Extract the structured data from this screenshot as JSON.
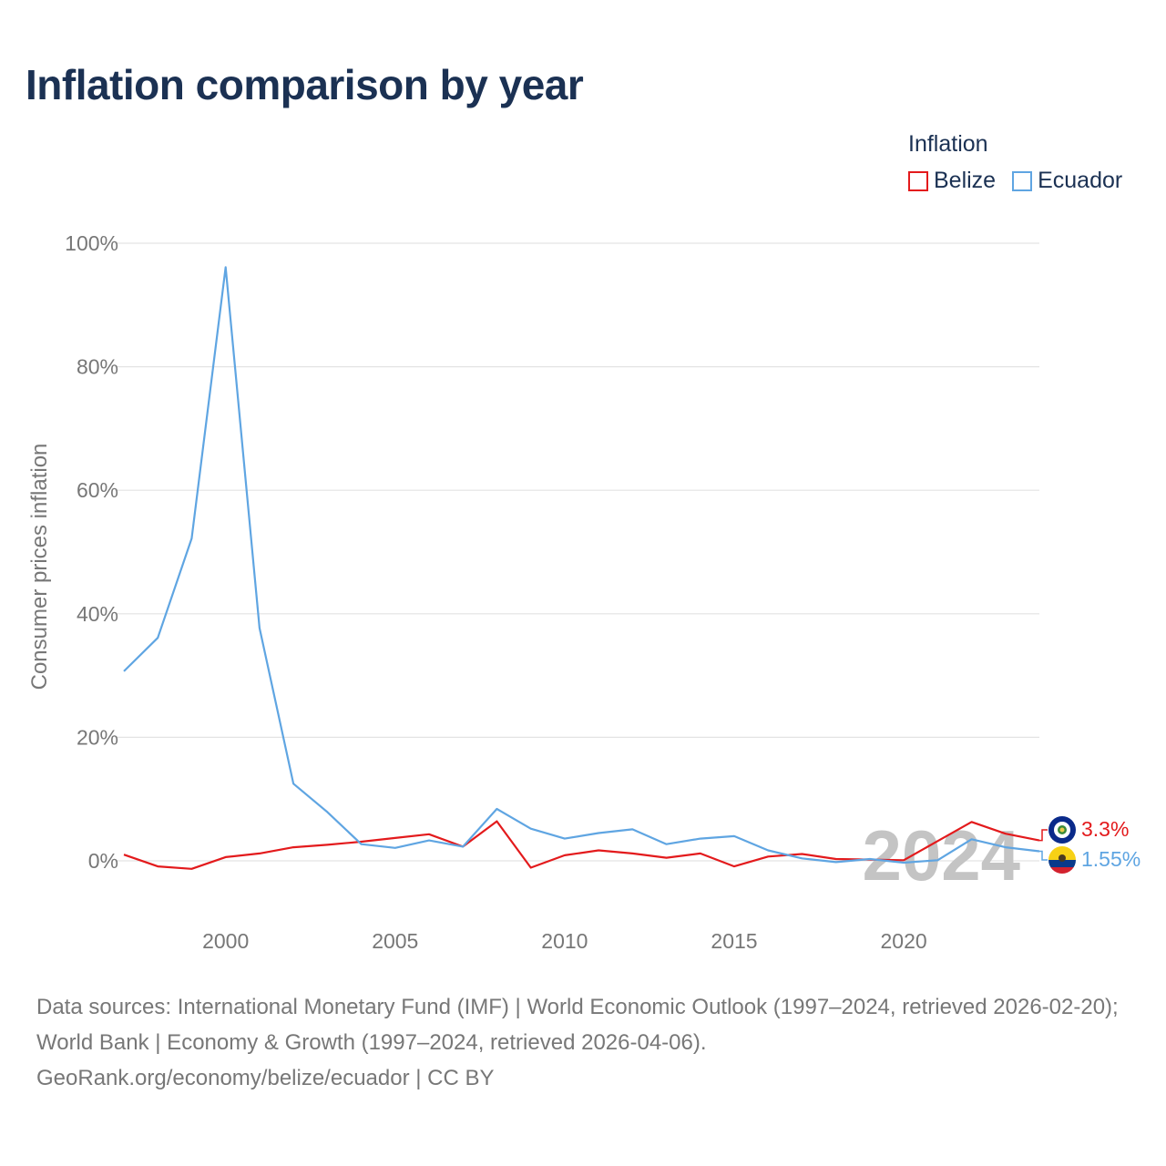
{
  "title": "Inflation comparison by year",
  "legend": {
    "title": "Inflation",
    "items": [
      {
        "label": "Belize",
        "color": "#e31a1c"
      },
      {
        "label": "Ecuador",
        "color": "#5fa5e2"
      }
    ]
  },
  "watermark_year": "2024",
  "end_labels": {
    "belize": "3.3%",
    "ecuador": "1.55%"
  },
  "sources": {
    "line1": "Data sources: International Monetary Fund (IMF) | World Economic Outlook (1997–2024, retrieved 2026-02-20); World Bank | Economy & Growth (1997–2024, retrieved 2026-04-06).",
    "line2": "GeoRank.org/economy/belize/ecuador | CC BY"
  },
  "chart_data": {
    "type": "line",
    "title": "Inflation comparison by year",
    "xlabel": "",
    "ylabel": "Consumer prices inflation",
    "xlim": [
      1997,
      2024
    ],
    "ylim": [
      0,
      100
    ],
    "yticks": [
      0,
      20,
      40,
      60,
      80,
      100
    ],
    "ytick_labels": [
      "0%",
      "20%",
      "40%",
      "60%",
      "80%",
      "100%"
    ],
    "xticks": [
      2000,
      2005,
      2010,
      2015,
      2020
    ],
    "xtick_labels": [
      "2000",
      "2005",
      "2010",
      "2015",
      "2020"
    ],
    "grid": true,
    "legend_position": "top-right",
    "x": [
      1997,
      1998,
      1999,
      2000,
      2001,
      2002,
      2003,
      2004,
      2005,
      2006,
      2007,
      2008,
      2009,
      2010,
      2011,
      2012,
      2013,
      2014,
      2015,
      2016,
      2017,
      2018,
      2019,
      2020,
      2021,
      2022,
      2023,
      2024
    ],
    "series": [
      {
        "name": "Belize",
        "color": "#e31a1c",
        "values": [
          1.0,
          -0.9,
          -1.3,
          0.6,
          1.2,
          2.2,
          2.6,
          3.1,
          3.7,
          4.3,
          2.3,
          6.4,
          -1.1,
          0.9,
          1.7,
          1.2,
          0.5,
          1.2,
          -0.9,
          0.7,
          1.1,
          0.3,
          0.2,
          0.1,
          3.2,
          6.3,
          4.4,
          3.3
        ]
      },
      {
        "name": "Ecuador",
        "color": "#5fa5e2",
        "values": [
          30.7,
          36.1,
          52.2,
          96.1,
          37.7,
          12.5,
          7.9,
          2.7,
          2.1,
          3.3,
          2.3,
          8.4,
          5.2,
          3.6,
          4.5,
          5.1,
          2.7,
          3.6,
          4.0,
          1.7,
          0.4,
          -0.2,
          0.3,
          -0.3,
          0.1,
          3.5,
          2.2,
          1.55
        ]
      }
    ]
  }
}
